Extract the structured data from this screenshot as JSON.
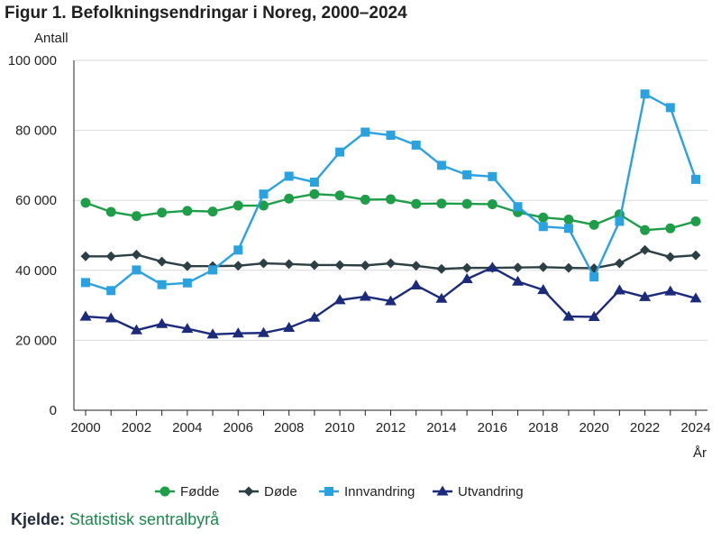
{
  "title": "Figur 1. Befolkningsendringar i Noreg, 2000–2024",
  "source": {
    "label": "Kjelde:",
    "value": "Statistisk sentralbyrå"
  },
  "chart_data": {
    "type": "line",
    "title": "Figur 1. Befolkningsendringar i Noreg, 2000–2024",
    "ylabel": "Antall",
    "xlabel": "År",
    "ylim": [
      0,
      100000
    ],
    "xlim": [
      2000,
      2024
    ],
    "yticks": [
      0,
      20000,
      40000,
      60000,
      80000,
      100000
    ],
    "ytick_labels": [
      "0",
      "20 000",
      "40 000",
      "60 000",
      "80 000",
      "100 000"
    ],
    "xticks": [
      2000,
      2002,
      2004,
      2006,
      2008,
      2010,
      2012,
      2014,
      2016,
      2018,
      2020,
      2022,
      2024
    ],
    "xtick_labels": [
      "2000",
      "2002",
      "2004",
      "2006",
      "2008",
      "2010",
      "2012",
      "2014",
      "2016",
      "2018",
      "2020",
      "2022",
      "2024"
    ],
    "grid": true,
    "legend_position": "bottom",
    "x": [
      2000,
      2001,
      2002,
      2003,
      2004,
      2005,
      2006,
      2007,
      2008,
      2009,
      2010,
      2011,
      2012,
      2013,
      2014,
      2015,
      2016,
      2017,
      2018,
      2019,
      2020,
      2021,
      2022,
      2023,
      2024
    ],
    "series": [
      {
        "name": "Fødde",
        "color": "#1f9e4a",
        "marker": "circle",
        "values": [
          59300,
          56700,
          55500,
          56500,
          57000,
          56800,
          58500,
          58500,
          60500,
          61800,
          61400,
          60200,
          60300,
          59000,
          59100,
          59000,
          58900,
          56600,
          55100,
          54500,
          53000,
          56000,
          51500,
          52000,
          54000
        ]
      },
      {
        "name": "Døde",
        "color": "#2b3f45",
        "marker": "diamond",
        "values": [
          44000,
          44000,
          44500,
          42500,
          41200,
          41200,
          41300,
          42000,
          41800,
          41500,
          41500,
          41400,
          42000,
          41300,
          40400,
          40700,
          40700,
          40800,
          40900,
          40700,
          40600,
          42000,
          45800,
          43800,
          44300
        ]
      },
      {
        "name": "Innvandring",
        "color": "#2aa2e0",
        "marker": "square",
        "values": [
          36500,
          34200,
          40100,
          35900,
          36400,
          40100,
          45800,
          61800,
          66900,
          65200,
          73800,
          79500,
          78600,
          75800,
          70000,
          67300,
          66800,
          58200,
          52500,
          52000,
          38100,
          54000,
          90400,
          86500,
          66000
        ]
      },
      {
        "name": "Utvandring",
        "color": "#1b2a7a",
        "marker": "triangle",
        "values": [
          26800,
          26300,
          22900,
          24700,
          23300,
          21700,
          22000,
          22100,
          23600,
          26500,
          31500,
          32500,
          31200,
          35700,
          31900,
          37500,
          40800,
          36800,
          34400,
          26800,
          26700,
          34300,
          32400,
          34000,
          32000
        ]
      }
    ]
  }
}
